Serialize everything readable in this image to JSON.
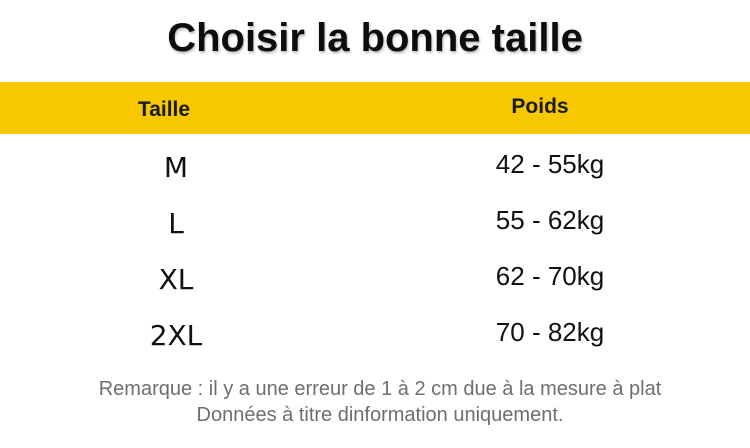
{
  "title": "Choisir la bonne taille",
  "colors": {
    "header_band": "#f7c800",
    "text": "#111111",
    "note_text": "#6e6e6e"
  },
  "table": {
    "headers": {
      "size": "Taille",
      "weight": "Poids"
    },
    "rows": [
      {
        "size": "M",
        "weight": "42 - 55kg"
      },
      {
        "size": "L",
        "weight": "55 - 62kg"
      },
      {
        "size": "XL",
        "weight": "62 - 70kg"
      },
      {
        "size": "2XL",
        "weight": "70 - 82kg"
      }
    ]
  },
  "notes": {
    "line1": "Remarque : il y a une erreur de 1 à 2 cm due à la mesure à plat",
    "line2": "Données à titre dinformation uniquement."
  }
}
